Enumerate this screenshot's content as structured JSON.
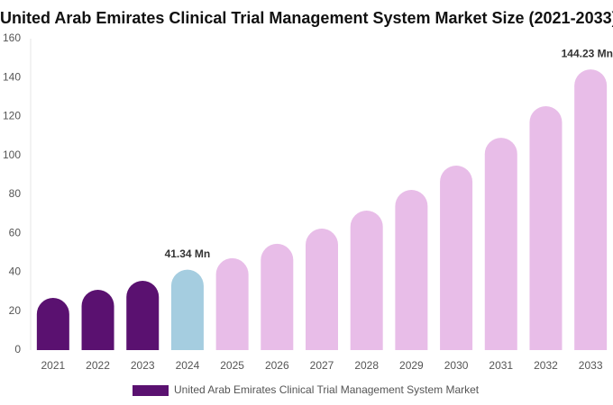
{
  "chart_data": {
    "type": "bar",
    "title": "United Arab Emirates Clinical Trial Management System Market Size (2021-2033)",
    "categories": [
      "2021",
      "2022",
      "2023",
      "2024",
      "2025",
      "2026",
      "2027",
      "2028",
      "2029",
      "2030",
      "2031",
      "2032",
      "2033"
    ],
    "series": [
      {
        "name": "United Arab Emirates Clinical Trial Management System Market",
        "color": "#5a1170",
        "values": [
          26.8,
          31,
          35.6,
          41.34,
          47.2,
          54.6,
          62.4,
          71.7,
          82.3,
          94.8,
          109.1,
          125.3,
          144.23
        ],
        "value_labels": [
          null,
          null,
          null,
          "41.34 Mn",
          null,
          null,
          null,
          null,
          null,
          null,
          null,
          null,
          "144.23 Mn"
        ],
        "colors": [
          "#5a1170",
          "#5a1170",
          "#5a1170",
          "#a5cde0",
          "#e8bde8",
          "#e8bde8",
          "#e8bde8",
          "#e8bde8",
          "#e8bde8",
          "#e8bde8",
          "#e8bde8",
          "#e8bde8",
          "#e8bde8"
        ]
      }
    ],
    "ylim": [
      0,
      160
    ],
    "yticks": [
      0,
      20,
      40,
      60,
      80,
      100,
      120,
      140,
      160
    ],
    "grid": false,
    "legend": "bottom"
  }
}
